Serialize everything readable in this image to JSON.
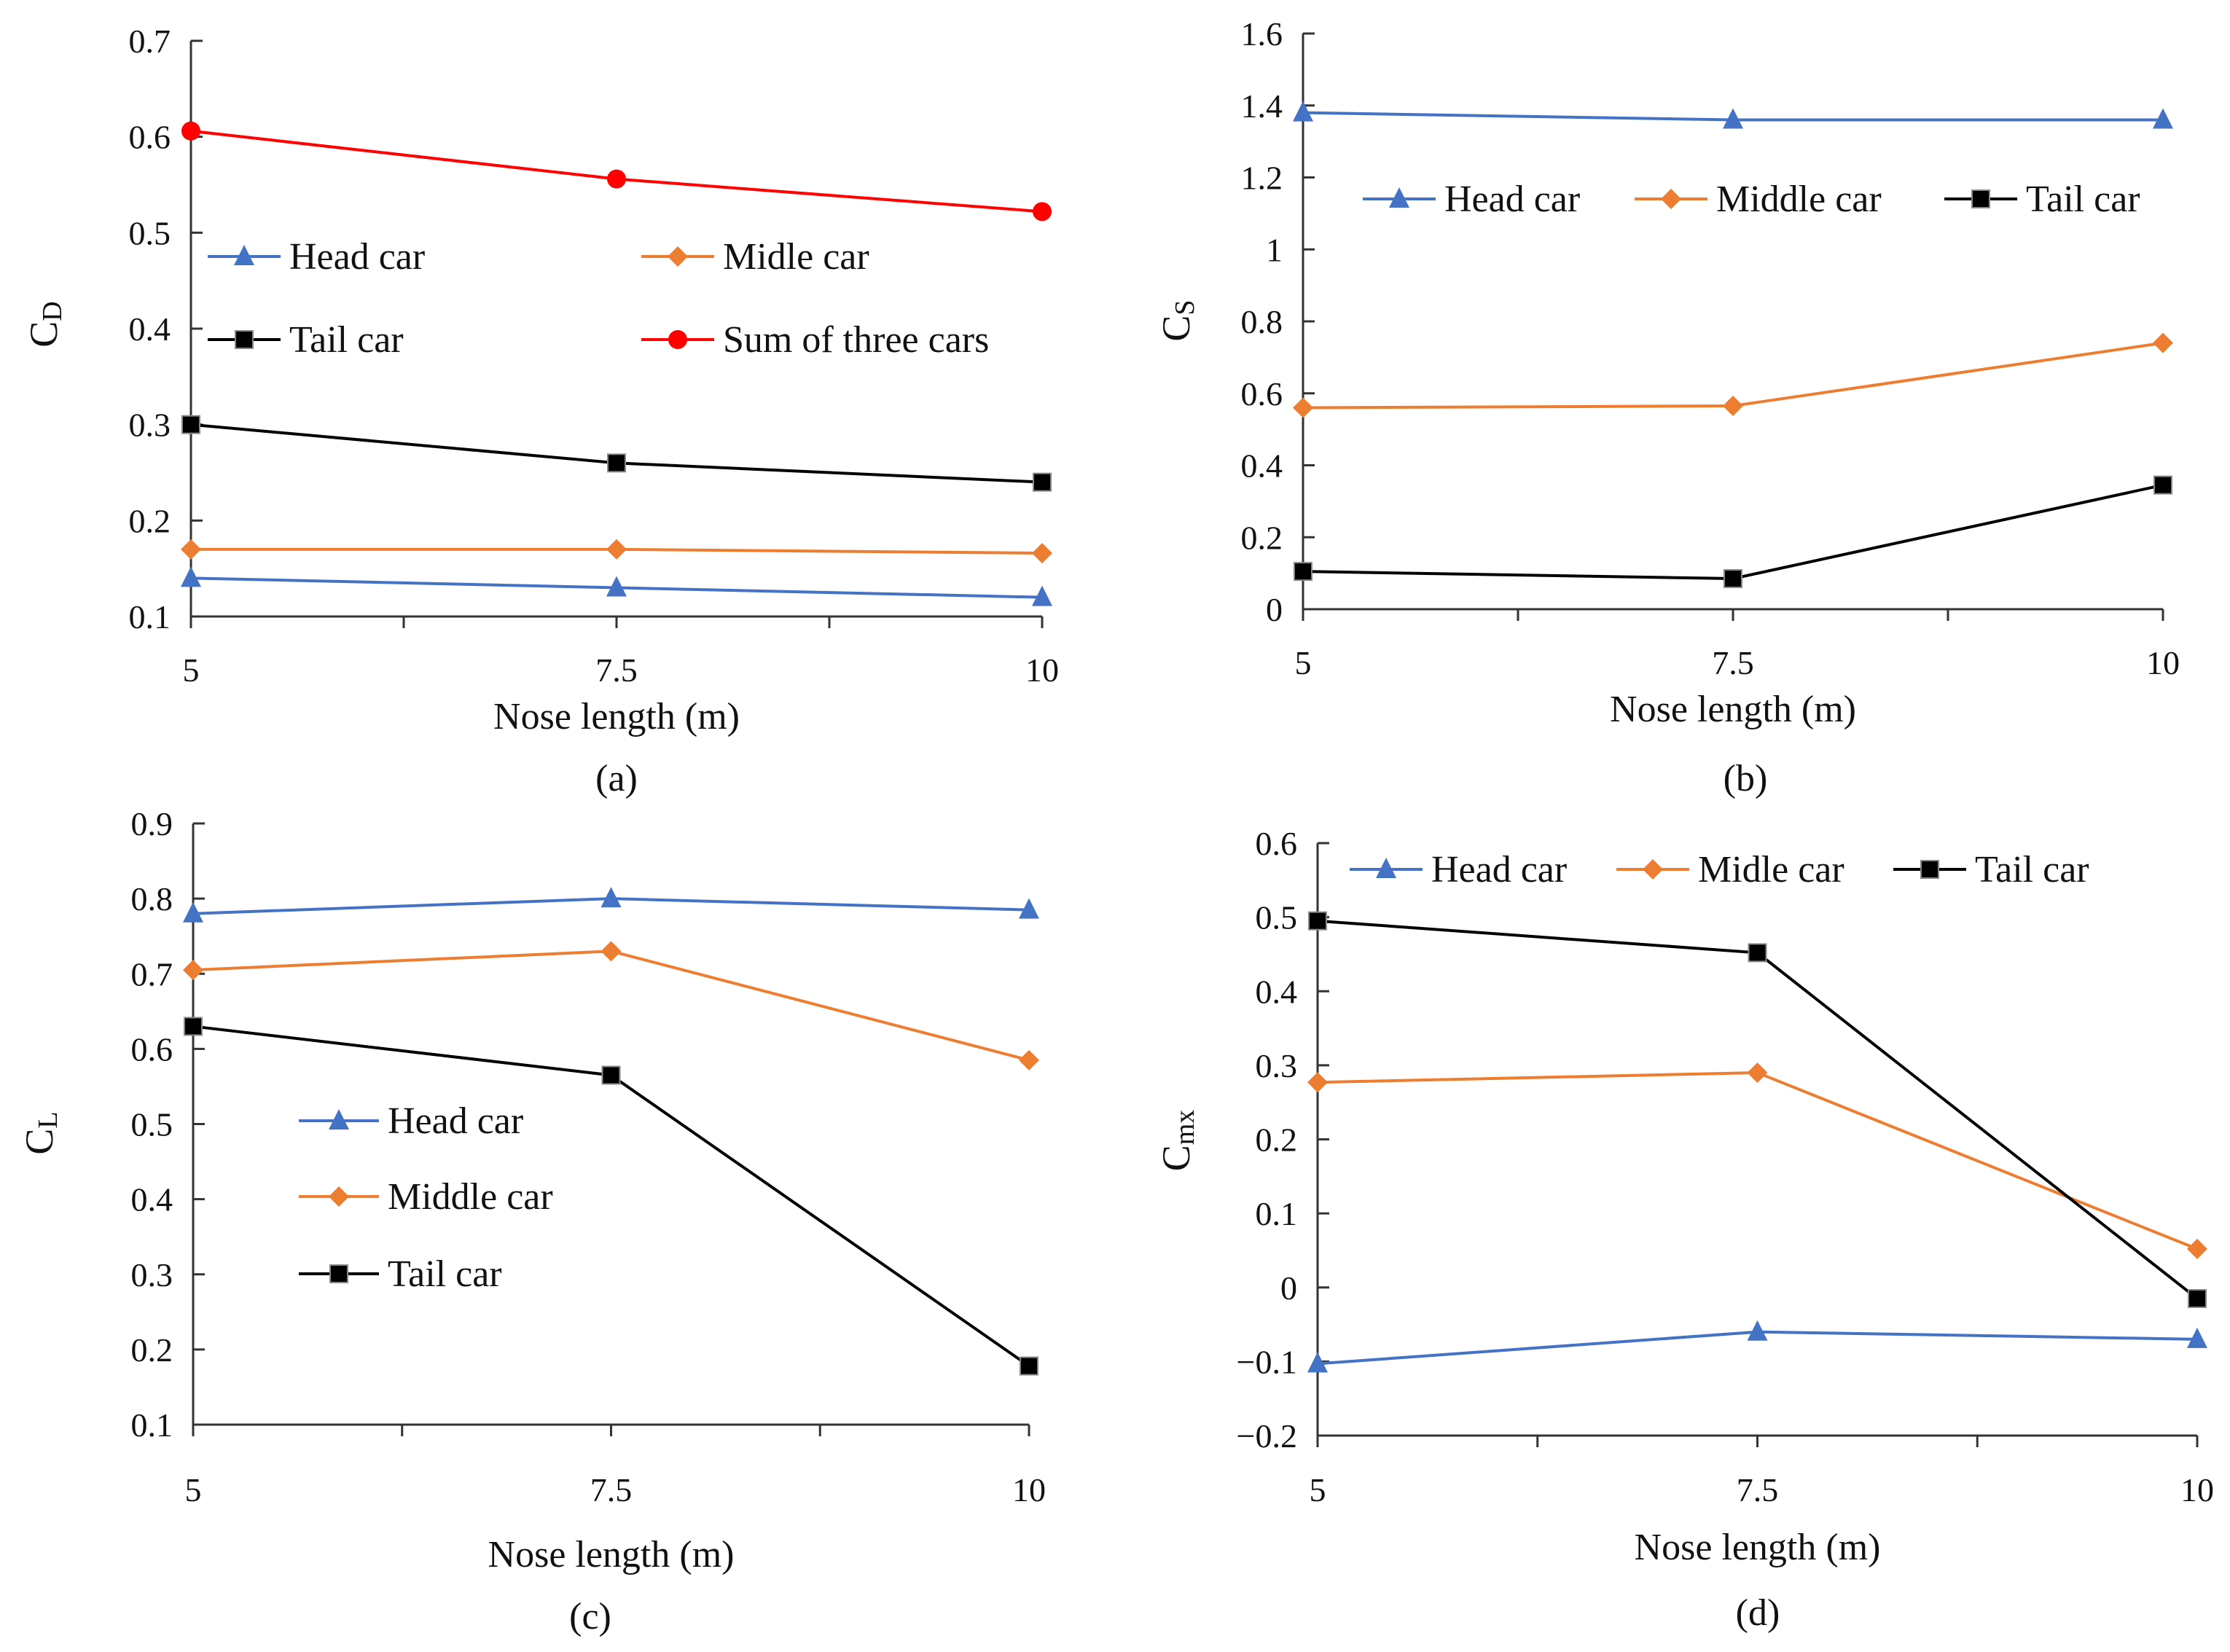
{
  "chart_data": [
    {
      "type": "line",
      "panel": "(a)",
      "ylabel": {
        "main": "C",
        "sub": "D"
      },
      "xlabel": "Nose length (m)",
      "x": [
        5,
        7.5,
        10
      ],
      "x_tick_labels": [
        "5",
        "7.5",
        "10"
      ],
      "ylim": [
        0.1,
        0.7
      ],
      "y_ticks": [
        "0.1",
        "0.2",
        "0.3",
        "0.4",
        "0.5",
        "0.6",
        "0.7"
      ],
      "series": [
        {
          "name": "Head car",
          "color": "#4472C4",
          "marker": "triangle",
          "values": [
            0.14,
            0.13,
            0.12
          ]
        },
        {
          "name": "Midle car",
          "color": "#ED7D31",
          "marker": "diamond",
          "values": [
            0.17,
            0.17,
            0.166
          ]
        },
        {
          "name": "Tail car",
          "color": "#000000",
          "marker": "square",
          "values": [
            0.3,
            0.26,
            0.24
          ]
        },
        {
          "name": "Sum of three cars",
          "color": "#FF0000",
          "marker": "circle",
          "values": [
            0.606,
            0.556,
            0.522
          ]
        }
      ]
    },
    {
      "type": "line",
      "panel": "(b)",
      "ylabel": {
        "main": "C",
        "sub": "S"
      },
      "xlabel": "Nose length (m)",
      "x": [
        5,
        7.5,
        10
      ],
      "x_tick_labels": [
        "5",
        "7.5",
        "10"
      ],
      "ylim": [
        0,
        1.6
      ],
      "y_ticks": [
        "0",
        "0.2",
        "0.4",
        "0.6",
        "0.8",
        "1",
        "1.2",
        "1.4",
        "1.6"
      ],
      "series": [
        {
          "name": "Head car",
          "color": "#4472C4",
          "marker": "triangle",
          "values": [
            1.38,
            1.36,
            1.36
          ]
        },
        {
          "name": "Middle car",
          "color": "#ED7D31",
          "marker": "diamond",
          "values": [
            0.56,
            0.565,
            0.74
          ]
        },
        {
          "name": "Tail car",
          "color": "#000000",
          "marker": "square",
          "values": [
            0.105,
            0.085,
            0.345
          ]
        }
      ]
    },
    {
      "type": "line",
      "panel": "(c)",
      "ylabel": {
        "main": "C",
        "sub": "L"
      },
      "xlabel": "Nose length (m)",
      "x": [
        5,
        7.5,
        10
      ],
      "x_tick_labels": [
        "5",
        "7.5",
        "10"
      ],
      "ylim": [
        0.1,
        0.9
      ],
      "y_ticks": [
        "0.1",
        "0.2",
        "0.3",
        "0.4",
        "0.5",
        "0.6",
        "0.7",
        "0.8",
        "0.9"
      ],
      "series": [
        {
          "name": "Head car",
          "color": "#4472C4",
          "marker": "triangle",
          "values": [
            0.78,
            0.8,
            0.785
          ]
        },
        {
          "name": "Middle car",
          "color": "#ED7D31",
          "marker": "diamond",
          "values": [
            0.705,
            0.73,
            0.585
          ]
        },
        {
          "name": "Tail car",
          "color": "#000000",
          "marker": "square",
          "values": [
            0.63,
            0.565,
            0.178
          ]
        }
      ]
    },
    {
      "type": "line",
      "panel": "(d)",
      "ylabel": {
        "main": "C",
        "sub": "mx"
      },
      "xlabel": "Nose length (m)",
      "x": [
        5,
        7.5,
        10
      ],
      "x_tick_labels": [
        "5",
        "7.5",
        "10"
      ],
      "ylim": [
        -0.2,
        0.6
      ],
      "y_ticks": [
        "−0.2",
        "−0.1",
        "0",
        "0.1",
        "0.2",
        "0.3",
        "0.4",
        "0.5",
        "0.6"
      ],
      "series": [
        {
          "name": "Head car",
          "color": "#4472C4",
          "marker": "triangle",
          "values": [
            -0.103,
            -0.06,
            -0.07
          ]
        },
        {
          "name": "Midle car",
          "color": "#ED7D31",
          "marker": "diamond",
          "values": [
            0.277,
            0.29,
            0.052
          ]
        },
        {
          "name": "Tail car",
          "color": "#000000",
          "marker": "square",
          "values": [
            0.495,
            0.452,
            -0.015
          ]
        }
      ]
    }
  ]
}
